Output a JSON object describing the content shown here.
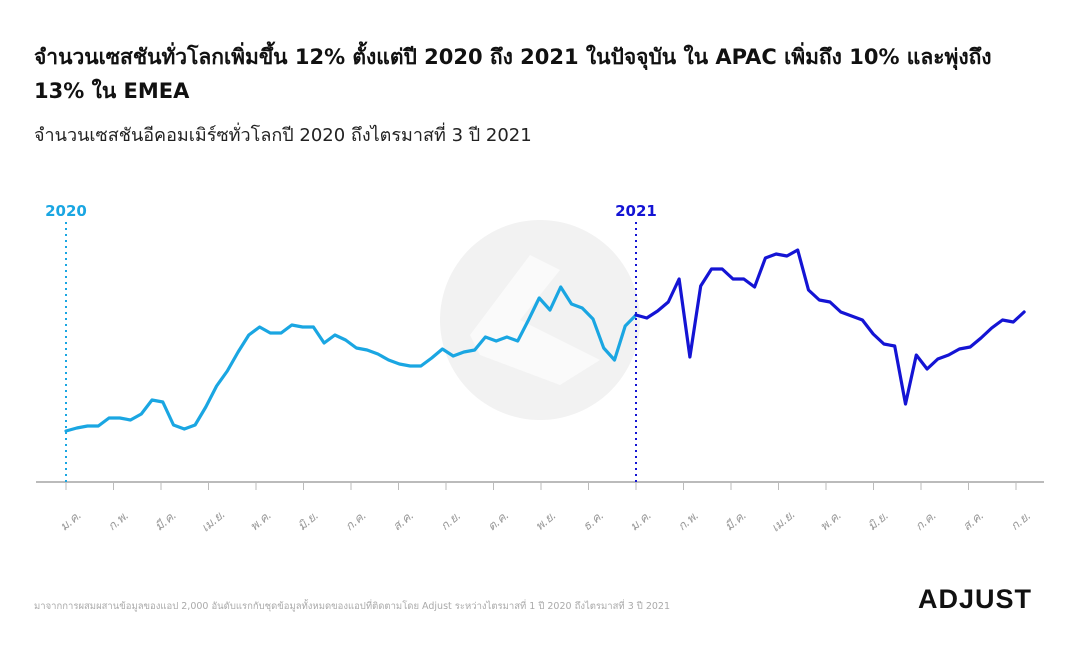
{
  "title": "จำนวนเซสชันทั่วโลกเพิ่มขึ้น 12% ตั้งแต่ปี 2020 ถึง 2021 ในปัจจุบัน ใน APAC เพิ่มถึง 10% และพุ่งถึง 13% ใน EMEA",
  "subtitle": "จำนวนเซสชันอีคอมเมิร์ซทั่วโลกปี 2020 ถึงไตรมาสที่ 3 ปี 2021",
  "footer": "มาจากการผสมผสานข้อมูลของแอป 2,000 อันดับแรกกับชุดข้อมูลทั้งหมดของแอปที่ติดตามโดย Adjust ระหว่างไตรมาสที่ 1 ปี 2020 ถึงไตรมาสที่ 3 ปี 2021",
  "logo": "ADJUST",
  "colors": {
    "series_2020": "#1aa6e2",
    "series_2021": "#1414d4",
    "axis": "#bbbbbb",
    "tick_label": "#999999"
  },
  "chart_data": {
    "type": "line",
    "title": "จำนวนเซสชันอีคอมเมิร์ซทั่วโลกปี 2020 ถึงไตรมาสที่ 3 ปี 2021",
    "xlabel": "",
    "ylabel": "",
    "y_axis_labels_shown": false,
    "grid": false,
    "ylim": [
      0,
      250
    ],
    "x_tick_labels": [
      "ม.ค.",
      "ก.พ.",
      "มี.ค.",
      "เม.ย.",
      "พ.ค.",
      "มิ.ย.",
      "ก.ค.",
      "ส.ค.",
      "ก.ย.",
      "ต.ค.",
      "พ.ย.",
      "ธ.ค.",
      "ม.ค.",
      "ก.พ.",
      "มี.ค.",
      "เม.ย.",
      "พ.ค.",
      "มิ.ย.",
      "ก.ค.",
      "ส.ค.",
      "ก.ย."
    ],
    "markers": [
      {
        "label": "2020",
        "at_tick": 0
      },
      {
        "label": "2021",
        "at_tick": 12
      }
    ],
    "series": [
      {
        "name": "2020",
        "period": "ม.ค. 2020 – ม.ค. 2021",
        "values": [
          51,
          54,
          56,
          56,
          64,
          64,
          62,
          68,
          82,
          80,
          57,
          53,
          57,
          75,
          96,
          111,
          130,
          147,
          155,
          149,
          149,
          157,
          155,
          155,
          139,
          147,
          142,
          134,
          132,
          128,
          122,
          118,
          116,
          116,
          124,
          133,
          126,
          130,
          132,
          145,
          141,
          145,
          141,
          162,
          184,
          172,
          195,
          178,
          174,
          163,
          134,
          122,
          156,
          167
        ]
      },
      {
        "name": "2021",
        "period": "ม.ค. 2021 – ก.ย. 2021",
        "values": [
          167,
          164,
          171,
          180,
          203,
          125,
          196,
          213,
          213,
          203,
          203,
          195,
          224,
          228,
          226,
          232,
          192,
          182,
          180,
          170,
          166,
          162,
          148,
          138,
          136,
          78,
          127,
          113,
          123,
          127,
          133,
          135,
          144,
          154,
          162,
          160,
          170
        ]
      }
    ]
  }
}
